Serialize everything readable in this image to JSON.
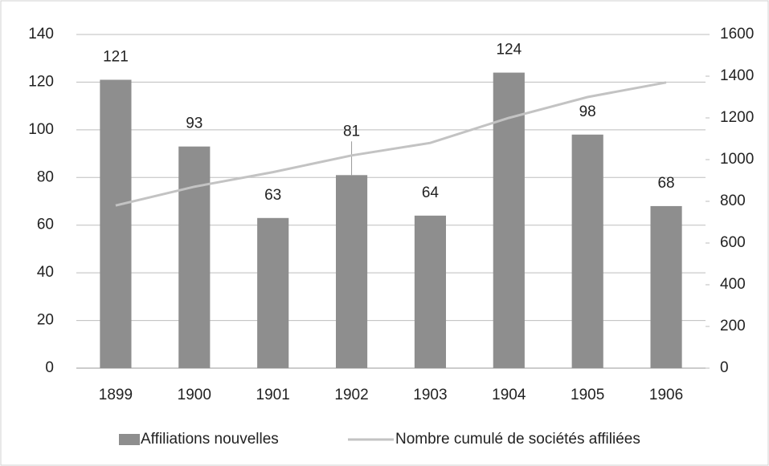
{
  "chart_data": {
    "type": "bar",
    "categories": [
      "1899",
      "1900",
      "1901",
      "1902",
      "1903",
      "1904",
      "1905",
      "1906"
    ],
    "series": [
      {
        "name": "Affiliations nouvelles",
        "color": "#8e8e8e",
        "type": "bar",
        "values": [
          121,
          93,
          63,
          81,
          64,
          124,
          98,
          68
        ],
        "data_labels": true
      },
      {
        "name": "Nombre cumulé de sociétés affiliées",
        "color": "#c3c3c3",
        "type": "line",
        "axis": "y2",
        "values": [
          780,
          870,
          940,
          1020,
          1080,
          1200,
          1300,
          1370
        ]
      }
    ],
    "ylim": [
      0,
      140
    ],
    "yticks": [
      0,
      20,
      40,
      60,
      80,
      100,
      120,
      140
    ],
    "y2lim": [
      0,
      1600
    ],
    "y2ticks": [
      0,
      200,
      400,
      600,
      800,
      1000,
      1200,
      1400,
      1600
    ],
    "grid": true,
    "legend": "bottom"
  }
}
